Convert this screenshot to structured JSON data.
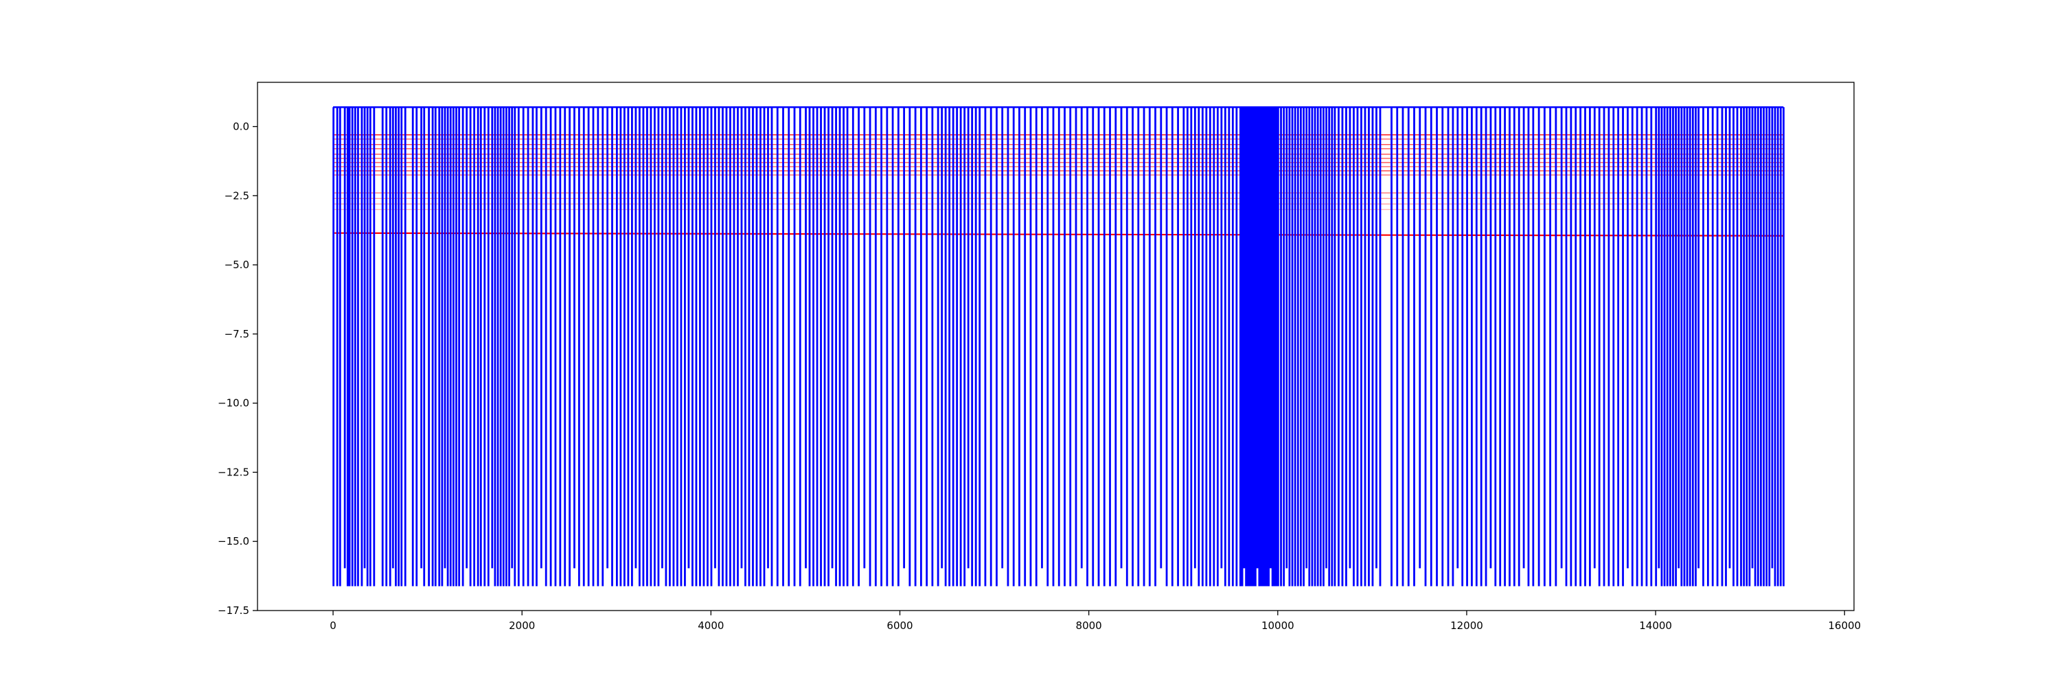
{
  "chart_data": {
    "type": "line",
    "title": "",
    "xlabel": "",
    "ylabel": "",
    "xlim": [
      -800,
      16100
    ],
    "ylim": [
      -17.5,
      1.6
    ],
    "x_ticks": [
      0,
      2000,
      4000,
      6000,
      8000,
      10000,
      12000,
      14000,
      16000
    ],
    "x_tick_labels": [
      "0",
      "2000",
      "4000",
      "6000",
      "8000",
      "10000",
      "12000",
      "14000",
      "16000"
    ],
    "y_ticks": [
      0.0,
      -2.5,
      -5.0,
      -7.5,
      -10.0,
      -12.5,
      -15.0,
      -17.5
    ],
    "y_tick_labels": [
      "0.0",
      "−2.5",
      "−5.0",
      "−7.5",
      "−10.0",
      "−12.5",
      "−15.0",
      "−17.5"
    ],
    "grid": false,
    "legend": "none",
    "series": [
      {
        "color": "#0000ff",
        "x_range": [
          0,
          15350
        ],
        "high_level": 0.7,
        "low_levels": [
          -16.6,
          -15.95
        ],
        "segment_boundaries": [
          0,
          40,
          70,
          120,
          150,
          170,
          200,
          230,
          260,
          300,
          330,
          360,
          390,
          430,
          520,
          560,
          600,
          630,
          660,
          690,
          720,
          760,
          840,
          880,
          930,
          960,
          1010,
          1050,
          1080,
          1120,
          1150,
          1180,
          1210,
          1240,
          1270,
          1300,
          1330,
          1370,
          1410,
          1450,
          1490,
          1530,
          1560,
          1600,
          1640,
          1680,
          1710,
          1740,
          1770,
          1800,
          1830,
          1860,
          1890,
          1920,
          1960,
          2010,
          2060,
          2110,
          2150,
          2200,
          2250,
          2300,
          2350,
          2400,
          2450,
          2500,
          2550,
          2600,
          2650,
          2700,
          2750,
          2800,
          2850,
          2900,
          2950,
          3000,
          3040,
          3080,
          3120,
          3160,
          3200,
          3240,
          3280,
          3320,
          3360,
          3400,
          3440,
          3480,
          3520,
          3560,
          3600,
          3640,
          3680,
          3720,
          3760,
          3800,
          3840,
          3880,
          3920,
          3960,
          4000,
          4040,
          4080,
          4120,
          4160,
          4200,
          4240,
          4280,
          4320,
          4360,
          4400,
          4440,
          4480,
          4520,
          4560,
          4600,
          4640,
          4700,
          4760,
          4820,
          4880,
          4940,
          5000,
          5040,
          5080,
          5120,
          5160,
          5200,
          5240,
          5280,
          5320,
          5360,
          5400,
          5440,
          5500,
          5560,
          5620,
          5680,
          5740,
          5800,
          5860,
          5920,
          5980,
          6040,
          6100,
          6160,
          6220,
          6280,
          6340,
          6400,
          6440,
          6480,
          6520,
          6560,
          6600,
          6640,
          6680,
          6720,
          6760,
          6800,
          6840,
          6900,
          6960,
          7020,
          7080,
          7140,
          7200,
          7260,
          7320,
          7380,
          7440,
          7500,
          7560,
          7620,
          7680,
          7740,
          7800,
          7860,
          7920,
          7980,
          8040,
          8100,
          8160,
          8220,
          8280,
          8340,
          8400,
          8460,
          8520,
          8580,
          8640,
          8700,
          8760,
          8820,
          8880,
          8940,
          9000,
          9040,
          9080,
          9120,
          9160,
          9200,
          9240,
          9280,
          9320,
          9360,
          9400,
          9440,
          9480,
          9520,
          9560,
          9600,
          9620,
          9640,
          9660,
          9680,
          9700,
          9720,
          9740,
          9760,
          9780,
          9800,
          9820,
          9840,
          9860,
          9880,
          9900,
          9920,
          9940,
          9960,
          9980,
          10000,
          10030,
          10060,
          10090,
          10120,
          10150,
          10180,
          10210,
          10240,
          10270,
          10300,
          10330,
          10360,
          10390,
          10420,
          10450,
          10480,
          10510,
          10540,
          10570,
          10600,
          10640,
          10680,
          10720,
          10760,
          10800,
          10840,
          10880,
          10920,
          10960,
          11000,
          11040,
          11080,
          11200,
          11260,
          11320,
          11380,
          11440,
          11500,
          11560,
          11620,
          11680,
          11740,
          11800,
          11850,
          11900,
          11950,
          12000,
          12050,
          12100,
          12150,
          12200,
          12250,
          12300,
          12350,
          12400,
          12450,
          12500,
          12550,
          12600,
          12650,
          12700,
          12760,
          12820,
          12880,
          12940,
          13000,
          13050,
          13100,
          13150,
          13200,
          13250,
          13300,
          13350,
          13400,
          13450,
          13500,
          13550,
          13600,
          13650,
          13700,
          13750,
          13800,
          13850,
          13900,
          13950,
          14000,
          14030,
          14060,
          14090,
          14120,
          14150,
          14180,
          14210,
          14240,
          14270,
          14300,
          14330,
          14360,
          14390,
          14420,
          14450,
          14500,
          14550,
          14600,
          14650,
          14700,
          14740,
          14780,
          14820,
          14860,
          14900,
          14930,
          14960,
          14990,
          15020,
          15050,
          15080,
          15110,
          15140,
          15170,
          15200,
          15230,
          15260,
          15290,
          15320,
          15350
        ]
      },
      {
        "color": "#ff0000",
        "x_range": [
          0,
          15350
        ],
        "levels": [
          -0.3,
          -0.45,
          -0.65,
          -0.8,
          -1.0,
          -1.15,
          -1.3,
          -1.45,
          -1.6,
          -1.75,
          -2.4,
          -2.6,
          -2.8,
          -3.0
        ],
        "level_opacity": [
          1.0,
          0.6,
          0.7,
          0.6,
          0.7,
          0.6,
          0.7,
          0.6,
          0.7,
          0.6,
          0.5,
          0.4,
          0.35,
          0.3
        ],
        "main_line": {
          "start": -3.85,
          "end": -3.95
        }
      }
    ]
  }
}
